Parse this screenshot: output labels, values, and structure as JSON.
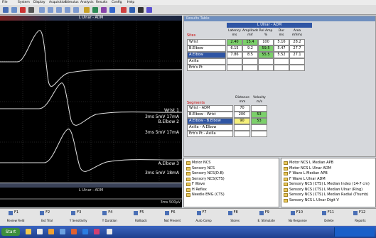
{
  "menu": [
    "File",
    "System",
    "Display",
    "Acquisition",
    "Stimulus",
    "Analysis",
    "Results",
    "Config",
    "Help"
  ],
  "waveform": {
    "title": "L Ulnar - ADM",
    "traces": [
      {
        "site": "Wrist 1",
        "settings": "3ms 5mV 17mA"
      },
      {
        "site": "B.Elbow 2",
        "settings": "3ms 5mV 17mA"
      },
      {
        "site": "A.Elbow 3",
        "settings": "3ms 5mV 18mA"
      }
    ]
  },
  "lower_waveform": {
    "title": "L Ulnar - ADM",
    "settings": "3ms 500µV"
  },
  "results": {
    "panel_title": "Results Table",
    "title": "L Ulnar - ADM",
    "sites_header": "Sites",
    "columns": [
      {
        "name": "Latency",
        "unit": "ms"
      },
      {
        "name": "Amplitude",
        "unit": "mV"
      },
      {
        "name": "Rel Amp",
        "unit": "%"
      },
      {
        "name": "Dur",
        "unit": "ms"
      },
      {
        "name": "Area",
        "unit": "mVms"
      }
    ],
    "rows": [
      {
        "site": "Wrist",
        "values": [
          "2.40",
          "15.4",
          "100",
          "5.16",
          "28.2"
        ]
      },
      {
        "site": "B.Elbow",
        "values": [
          "6.15",
          "9.2",
          "59.5",
          "5.47",
          "27.7"
        ]
      },
      {
        "site": "A.Elbow",
        "values": [
          "7.86",
          "8.5",
          "55.5",
          "5.52",
          "27.1"
        ]
      },
      {
        "site": "Axilla"
      },
      {
        "site": "Erb's Pt"
      }
    ]
  },
  "segments": {
    "header": "Segments",
    "columns": [
      {
        "name": "Distance",
        "unit": "mm"
      },
      {
        "name": "Velocity",
        "unit": "m/s"
      }
    ],
    "rows": [
      {
        "name": "Wrist - ADM",
        "values": [
          "70"
        ]
      },
      {
        "name": "B.Elbow - Wrist",
        "values": [
          "200",
          "53"
        ]
      },
      {
        "name": "A.Elbow - B.Elbow",
        "values": [
          "90",
          "53"
        ]
      },
      {
        "name": "Axilla - A.Elbow"
      },
      {
        "name": "Erb's Pt - Axilla"
      }
    ]
  },
  "test_list": [
    "Motor NCS",
    "Sensory NCS",
    "Sensory NCS(D.B)",
    "Sensory NCS(CTS)",
    "F Wave",
    "H Reflex",
    "Needle EMG (CTS)"
  ],
  "study_list": [
    "Motor NCS L Median APB",
    "Motor NCS L Ulnar ADM",
    "F Wave L Median APB",
    "F Wave L Ulnar ADM",
    "Sensory NCS (CTS) L Median Index (14-7 cm)",
    "Sensory NCS (CTS) L Median Ulnar (Ring)",
    "Sensory NCS (CTS) L Median Radial (Thumb)",
    "Sensory NCS L Ulnar Digit V"
  ],
  "fkeys": [
    {
      "key": "F1",
      "label": "Review Field"
    },
    {
      "key": "F2",
      "label": "Ext Trial"
    },
    {
      "key": "F3",
      "label": "Y Sensitivity"
    },
    {
      "key": "F4",
      "label": "Y Duration"
    },
    {
      "key": "F5",
      "label": "Rollback"
    },
    {
      "key": "F6",
      "label": "Not Present"
    },
    {
      "key": "F7",
      "label": "Auto Comp"
    },
    {
      "key": "F8",
      "label": "Stores"
    },
    {
      "key": "F9",
      "label": "E. Stimulate"
    },
    {
      "key": "F10",
      "label": "No Response"
    },
    {
      "key": "F11",
      "label": "Delete"
    },
    {
      "key": "F12",
      "label": "Reports"
    }
  ],
  "taskbar": {
    "start": "Start"
  }
}
